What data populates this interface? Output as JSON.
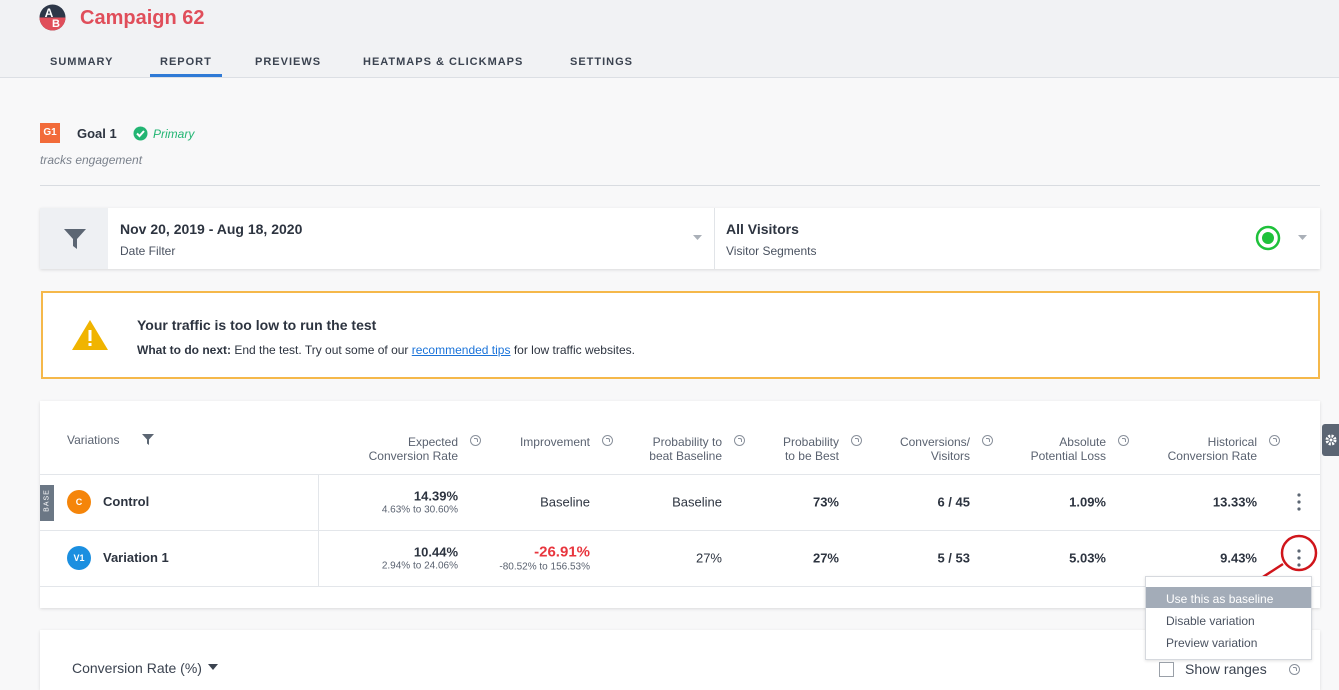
{
  "header": {
    "logo": [
      "A",
      "B"
    ],
    "title": "Campaign 62",
    "tabs": [
      "SUMMARY",
      "REPORT",
      "PREVIEWS",
      "HEATMAPS & CLICKMAPS",
      "SETTINGS"
    ],
    "active_tab": 1
  },
  "goal": {
    "badge": "G1",
    "name": "Goal 1",
    "status": "Primary",
    "description": "tracks engagement"
  },
  "filters": {
    "date": "Nov 20, 2019 - Aug 18, 2020",
    "date_label": "Date Filter",
    "segment": "All Visitors",
    "segment_label": "Visitor Segments"
  },
  "alert": {
    "title": "Your traffic is too low to run the test",
    "lead": "What to do next:",
    "text_before": "End the test. Try out some of our",
    "link": "recommended tips",
    "text_after": "for low traffic websites."
  },
  "table": {
    "variations_label": "Variations",
    "columns": [
      [
        "Expected",
        "Conversion Rate"
      ],
      [
        "Improvement"
      ],
      [
        "Probability to",
        "beat Baseline"
      ],
      [
        "Probability",
        "to be Best"
      ],
      [
        "Conversions/",
        "Visitors"
      ],
      [
        "Absolute",
        "Potential Loss"
      ],
      [
        "Historical",
        "Conversion Rate"
      ]
    ],
    "base_tag": "BASE",
    "rows": [
      {
        "badge": "C",
        "name": "Control",
        "expected": "14.39%",
        "expected_range": "4.63% to 30.60%",
        "improvement": "Baseline",
        "prob_beat": "Baseline",
        "prob_best": "73%",
        "conversions": "6 / 45",
        "loss": "1.09%",
        "historical": "13.33%"
      },
      {
        "badge": "V1",
        "name": "Variation 1",
        "expected": "10.44%",
        "expected_range": "2.94% to 24.06%",
        "improvement": "-26.91%",
        "improvement_range": "-80.52% to 156.53%",
        "prob_beat": "27%",
        "prob_best": "27%",
        "conversions": "5 / 53",
        "loss": "5.03%",
        "historical": "9.43%"
      }
    ]
  },
  "menu": [
    "Use this as baseline",
    "Disable variation",
    "Preview variation"
  ],
  "chart_panel": {
    "metric": "Conversion Rate (%)",
    "show_ranges": "Show ranges"
  }
}
